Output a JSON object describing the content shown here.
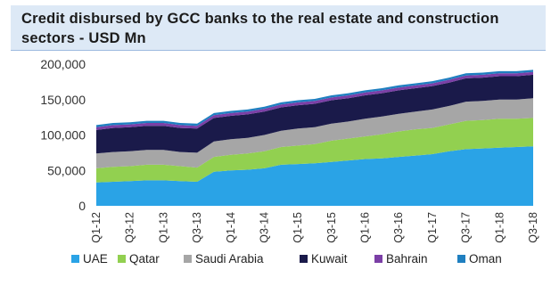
{
  "chart_data": {
    "type": "area",
    "stacked": true,
    "title": "Credit disbursed by GCC banks to the real estate and construction sectors - USD Mn",
    "xlabel": "",
    "ylabel": "",
    "ylim": [
      0,
      200000
    ],
    "yticks": [
      "200,000",
      "150,000",
      "100,000",
      "50,000",
      "0"
    ],
    "x": [
      "Q1-12",
      "Q2-12",
      "Q3-12",
      "Q4-12",
      "Q1-13",
      "Q2-13",
      "Q3-13",
      "Q4-13",
      "Q1-14",
      "Q2-14",
      "Q3-14",
      "Q4-14",
      "Q1-15",
      "Q2-15",
      "Q3-15",
      "Q4-15",
      "Q1-16",
      "Q2-16",
      "Q3-16",
      "Q4-16",
      "Q1-17",
      "Q2-17",
      "Q3-17",
      "Q4-17",
      "Q1-18",
      "Q2-18",
      "Q3-18"
    ],
    "xtick_labels": [
      "Q1-12",
      "Q3-12",
      "Q1-13",
      "Q3-13",
      "Q1-14",
      "Q3-14",
      "Q1-15",
      "Q3-15",
      "Q1-16",
      "Q3-16",
      "Q1-17",
      "Q3-17",
      "Q1-18",
      "Q3-18"
    ],
    "series": [
      {
        "name": "UAE",
        "color": "#2aa3e6",
        "values": [
          33000,
          34000,
          35000,
          36000,
          36000,
          35000,
          34000,
          48000,
          50000,
          51000,
          53000,
          58000,
          59000,
          60000,
          62000,
          64000,
          66000,
          67000,
          69000,
          71000,
          73000,
          77000,
          80000,
          81000,
          82000,
          83000,
          84000
        ]
      },
      {
        "name": "Qatar",
        "color": "#92d050",
        "values": [
          20000,
          21000,
          21000,
          22000,
          22000,
          21000,
          20000,
          21000,
          22000,
          23000,
          24000,
          25000,
          26000,
          27000,
          30000,
          31000,
          32000,
          34000,
          36000,
          37000,
          37000,
          38000,
          40000,
          40000,
          41000,
          40000,
          40000
        ]
      },
      {
        "name": "Saudi Arabia",
        "color": "#a6a6a6",
        "values": [
          21000,
          21000,
          21000,
          21000,
          21000,
          20000,
          21000,
          22000,
          22000,
          22000,
          23000,
          23000,
          24000,
          24000,
          24000,
          24000,
          25000,
          25000,
          25000,
          25000,
          26000,
          26000,
          27000,
          27000,
          27000,
          27000,
          28000
        ]
      },
      {
        "name": "Kuwait",
        "color": "#1a1a4a",
        "values": [
          33000,
          34000,
          34000,
          34000,
          34000,
          34000,
          34000,
          33000,
          33000,
          33000,
          33000,
          33000,
          33000,
          33000,
          33000,
          33000,
          33000,
          33000,
          33000,
          33000,
          33000,
          33000,
          33000,
          33000,
          33000,
          33000,
          33000
        ]
      },
      {
        "name": "Bahrain",
        "color": "#7b3fa6",
        "values": [
          4000,
          4000,
          4000,
          4000,
          4000,
          4000,
          4000,
          4000,
          4000,
          4000,
          4000,
          4000,
          4000,
          4000,
          4000,
          4000,
          4000,
          4000,
          4000,
          4000,
          4000,
          4000,
          4000,
          4000,
          4000,
          4000,
          4000
        ]
      },
      {
        "name": "Oman",
        "color": "#1f7fc0",
        "values": [
          3000,
          3000,
          3000,
          3000,
          3000,
          3000,
          3000,
          3000,
          3000,
          3000,
          3000,
          3000,
          3000,
          3000,
          3000,
          3000,
          3000,
          3000,
          3000,
          3000,
          3000,
          3000,
          3000,
          3000,
          3000,
          3000,
          3000
        ]
      }
    ],
    "grid": false,
    "legend_position": "bottom"
  }
}
